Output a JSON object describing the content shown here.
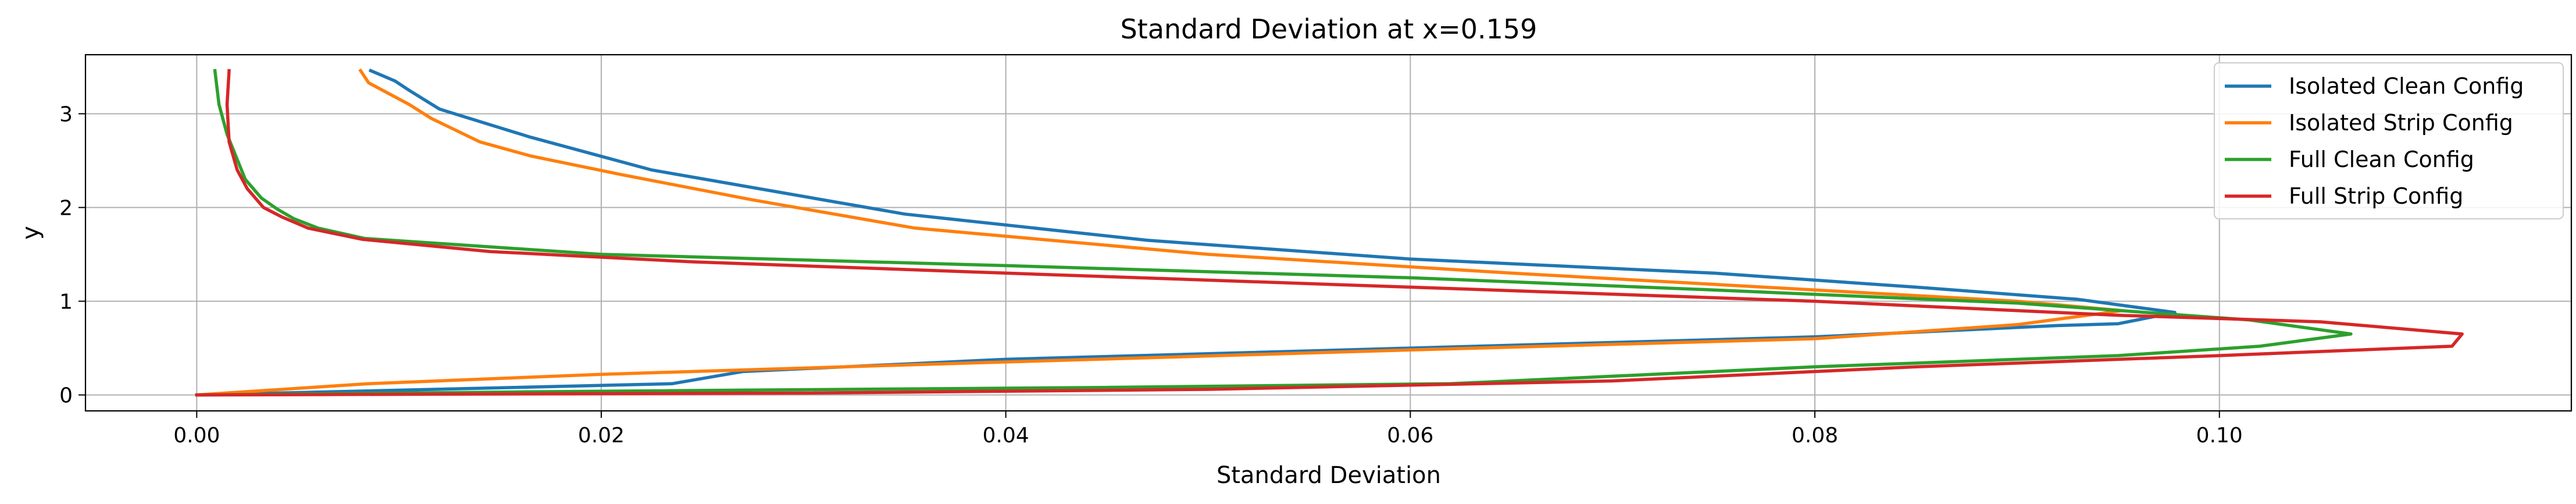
{
  "chart_data": {
    "type": "line",
    "title": "Standard Deviation at x=0.159",
    "xlabel": "Standard Deviation",
    "ylabel": "y",
    "xlim": [
      -0.0055,
      0.1174
    ],
    "ylim": [
      -0.17,
      3.63
    ],
    "xticks": [
      0.0,
      0.02,
      0.04,
      0.06,
      0.08,
      0.1
    ],
    "xtick_labels": [
      "0.00",
      "0.02",
      "0.04",
      "0.06",
      "0.08",
      "0.10"
    ],
    "yticks": [
      0,
      1,
      2,
      3
    ],
    "ytick_labels": [
      "0",
      "1",
      "2",
      "3"
    ],
    "grid": true,
    "legend_position": "top-right",
    "series": [
      {
        "name": "Isolated Clean Config",
        "color": "#1f77b4",
        "x": [
          0.0,
          0.0235,
          0.027,
          0.04,
          0.06,
          0.08,
          0.092,
          0.095,
          0.0978,
          0.093,
          0.085,
          0.075,
          0.06,
          0.047,
          0.035,
          0.0225,
          0.0165,
          0.012,
          0.0105,
          0.0098,
          0.0086
        ],
        "y": [
          0.0,
          0.12,
          0.25,
          0.38,
          0.5,
          0.62,
          0.74,
          0.76,
          0.88,
          1.02,
          1.15,
          1.3,
          1.45,
          1.65,
          1.93,
          2.4,
          2.75,
          3.05,
          3.25,
          3.35,
          3.46
        ]
      },
      {
        "name": "Isolated Strip Config",
        "color": "#ff7f0e",
        "x": [
          0.0,
          0.0085,
          0.02,
          0.035,
          0.06,
          0.08,
          0.09,
          0.0952,
          0.09,
          0.08,
          0.065,
          0.05,
          0.0355,
          0.0275,
          0.021,
          0.0165,
          0.014,
          0.0116,
          0.0105,
          0.0085,
          0.0081
        ],
        "y": [
          0.0,
          0.12,
          0.22,
          0.32,
          0.48,
          0.6,
          0.75,
          0.9,
          1.0,
          1.12,
          1.3,
          1.5,
          1.78,
          2.08,
          2.35,
          2.55,
          2.7,
          2.95,
          3.1,
          3.33,
          3.46
        ]
      },
      {
        "name": "Full Clean Config",
        "color": "#2ca02c",
        "x": [
          0.0,
          0.02,
          0.045,
          0.062,
          0.08,
          0.095,
          0.102,
          0.1065,
          0.1015,
          0.09,
          0.075,
          0.06,
          0.04,
          0.02,
          0.0083,
          0.006,
          0.0048,
          0.004,
          0.0032,
          0.0024,
          0.0015,
          0.0011,
          0.0009
        ],
        "y": [
          0.0,
          0.04,
          0.08,
          0.12,
          0.3,
          0.42,
          0.52,
          0.65,
          0.8,
          0.98,
          1.12,
          1.25,
          1.38,
          1.5,
          1.67,
          1.78,
          1.88,
          1.98,
          2.1,
          2.3,
          2.78,
          3.1,
          3.46
        ]
      },
      {
        "name": "Full Strip Config",
        "color": "#d62728",
        "x": [
          0.0,
          0.03,
          0.05,
          0.07,
          0.085,
          0.1,
          0.1115,
          0.112,
          0.105,
          0.095,
          0.08,
          0.06,
          0.04,
          0.0245,
          0.0145,
          0.0082,
          0.0055,
          0.0042,
          0.0033,
          0.0025,
          0.002,
          0.0016,
          0.0015,
          0.0016
        ],
        "y": [
          0.0,
          0.02,
          0.06,
          0.15,
          0.3,
          0.42,
          0.52,
          0.65,
          0.78,
          0.85,
          1.0,
          1.15,
          1.3,
          1.42,
          1.53,
          1.66,
          1.78,
          1.9,
          2.0,
          2.2,
          2.4,
          2.7,
          3.1,
          3.46
        ]
      }
    ]
  }
}
